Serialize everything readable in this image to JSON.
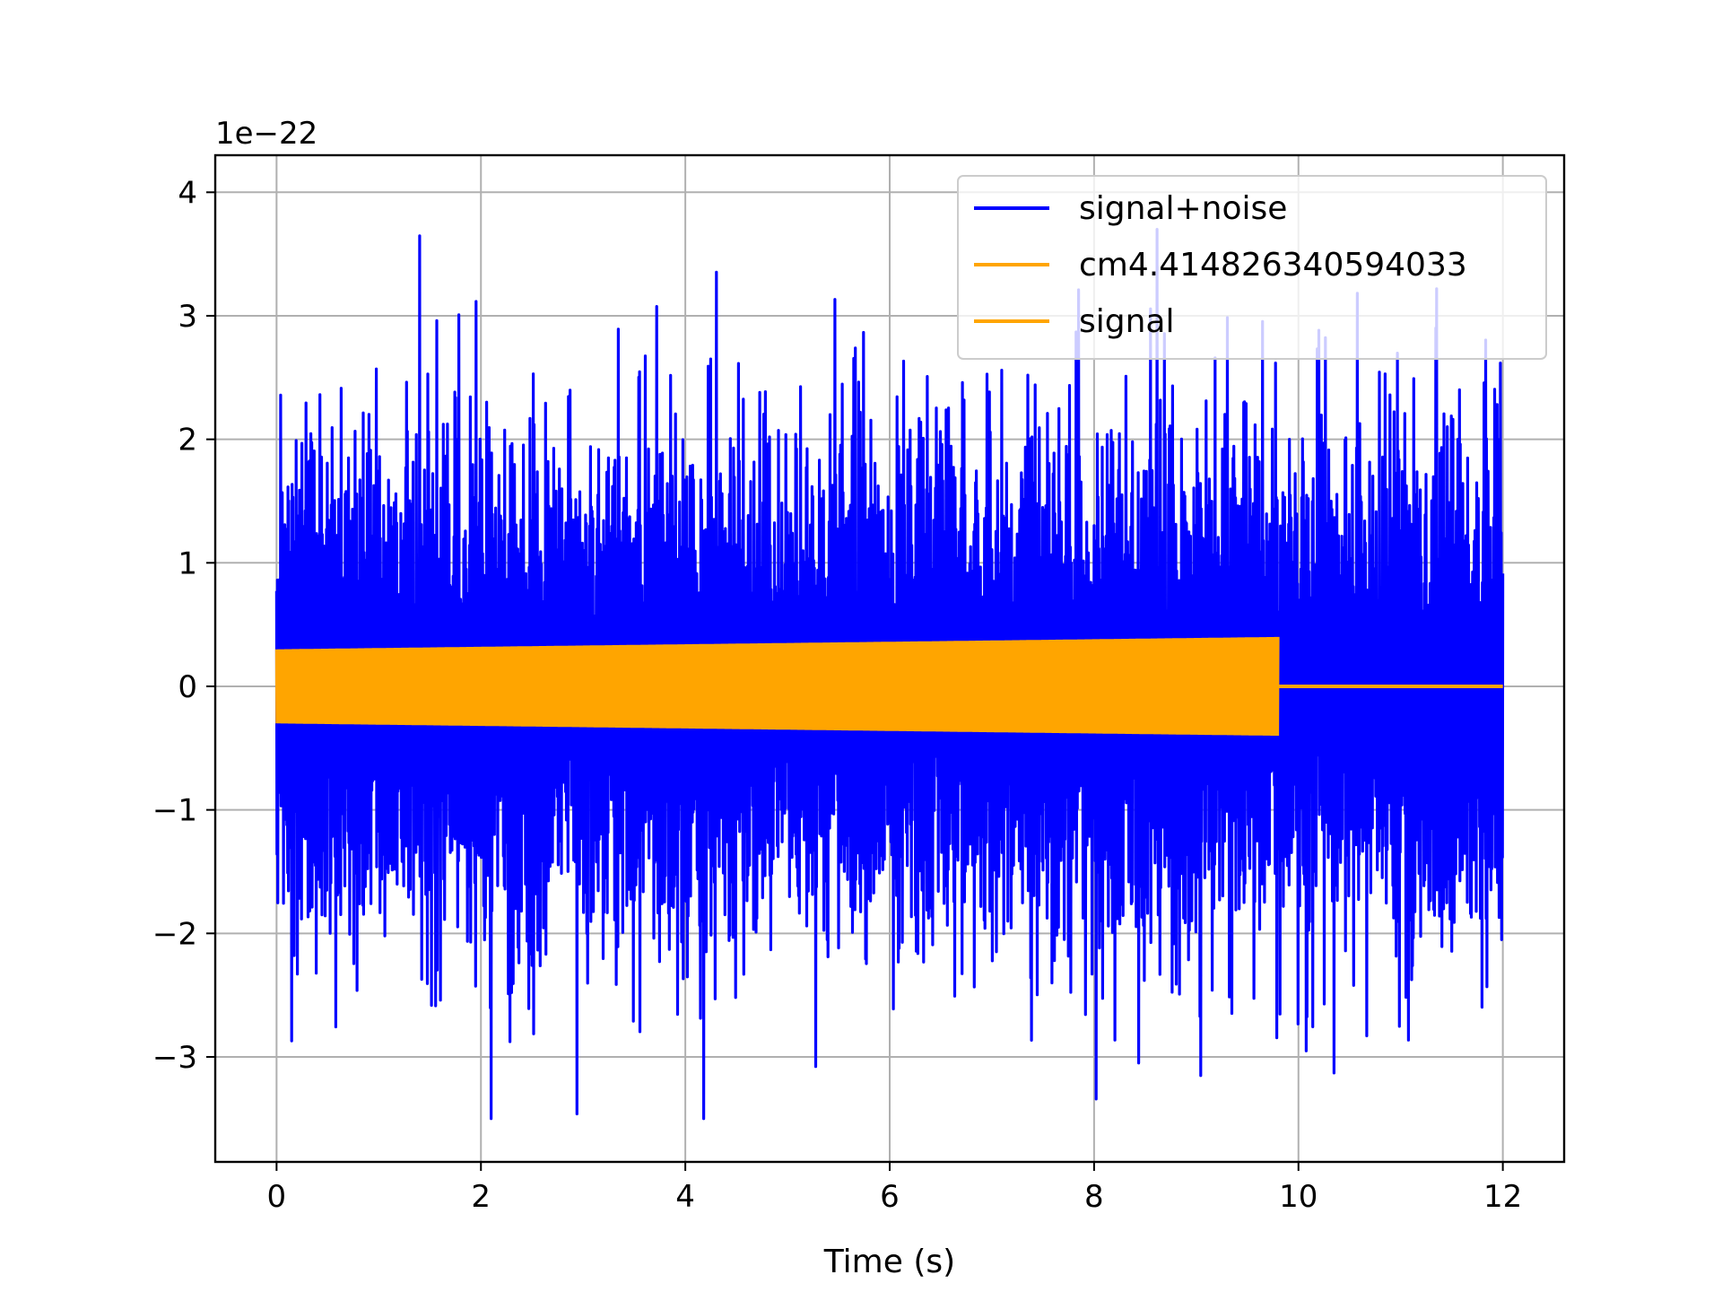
{
  "chart_data": {
    "type": "line",
    "title": "",
    "xlabel": "Time (s)",
    "ylabel": "",
    "y_offset_label": "1e−22",
    "xlim": [
      -0.6,
      12.6
    ],
    "ylim": [
      -3.85,
      4.3
    ],
    "x_ticks": [
      0,
      2,
      4,
      6,
      8,
      10,
      12
    ],
    "x_tick_labels": [
      "0",
      "2",
      "4",
      "6",
      "8",
      "10",
      "12"
    ],
    "y_ticks": [
      -3,
      -2,
      -1,
      0,
      1,
      2,
      3,
      4
    ],
    "y_tick_labels": [
      "−3",
      "−2",
      "−1",
      "0",
      "1",
      "2",
      "3",
      "4"
    ],
    "grid": true,
    "legend_position": "top-right",
    "series": [
      {
        "name": "signal+noise",
        "color": "#0000ff",
        "x_range": [
          0,
          12
        ],
        "description_stats": {
          "typical_amplitude": 1.4,
          "peak_max": 3.7,
          "peak_min": -3.5
        }
      },
      {
        "name": "cm4.414826340594033",
        "color": "#ffa500",
        "x_range": [
          0,
          9.8
        ],
        "envelope_start": 0.3,
        "envelope_end": 0.4
      },
      {
        "name": "signal",
        "color": "#ffa500",
        "x_range": [
          9.8,
          12
        ],
        "value": 0
      }
    ]
  }
}
